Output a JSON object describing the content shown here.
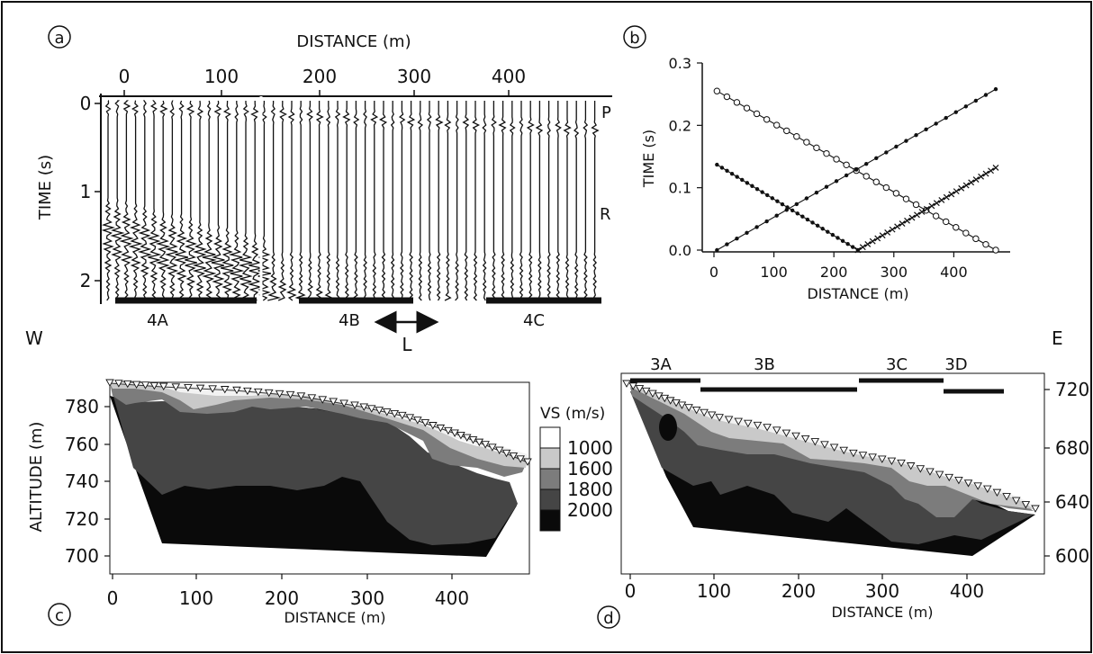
{
  "panels": {
    "a": {
      "letter": "a",
      "xlabel": "DISTANCE (m)",
      "ylabel": "TIME (s)",
      "xticks": [
        "0",
        "100",
        "200",
        "300",
        "400"
      ],
      "yticks": [
        "0",
        "1",
        "2"
      ],
      "phase_p": "P",
      "phase_r": "R",
      "segments": [
        "4A",
        "4B",
        "4C"
      ],
      "arrow_label": "L"
    },
    "b": {
      "letter": "b",
      "xlabel": "DISTANCE (m)",
      "ylabel": "TIME (s)",
      "xticks": [
        "0",
        "100",
        "200",
        "300",
        "400"
      ],
      "yticks": [
        "0.0",
        "0.1",
        "0.2",
        "0.3"
      ]
    },
    "c": {
      "letter": "c",
      "xlabel": "DISTANCE (m)",
      "ylabel": "ALTITUDE (m)",
      "xticks": [
        "0",
        "100",
        "200",
        "300",
        "400"
      ],
      "yticks": [
        "780",
        "760",
        "740",
        "720",
        "700"
      ]
    },
    "d": {
      "letter": "d",
      "xlabel": "DISTANCE (m)",
      "xticks": [
        "0",
        "100",
        "200",
        "300",
        "400"
      ],
      "yticks": [
        "720",
        "680",
        "640",
        "600"
      ],
      "segments": [
        "3A",
        "3B",
        "3C",
        "3D"
      ]
    }
  },
  "direction": {
    "west": "W",
    "east": "E"
  },
  "legend": {
    "title": "VS (m/s)",
    "classes": [
      {
        "label": "1000",
        "color": "#ffffff"
      },
      {
        "label": "1600",
        "color": "#c9c9c9"
      },
      {
        "label": "1800",
        "color": "#7c7c7c"
      },
      {
        "label": "2000",
        "color": "#454545"
      },
      {
        "label": "",
        "color": "#0a0a0a"
      }
    ]
  },
  "chart_data": [
    {
      "type": "line",
      "panel": "b",
      "xlim": [
        -20,
        480
      ],
      "ylim": [
        0,
        0.3
      ],
      "series": [
        {
          "marker": "circle",
          "x": [
            5,
            470
          ],
          "y": [
            0.255,
            0.0
          ]
        },
        {
          "marker": "dot",
          "x": [
            5,
            470
          ],
          "y": [
            0.0,
            0.258
          ]
        },
        {
          "marker": "dot",
          "x": [
            5,
            240
          ],
          "y": [
            0.137,
            0.0
          ]
        },
        {
          "marker": "cross",
          "x": [
            240,
            470
          ],
          "y": [
            0.0,
            0.132
          ]
        }
      ]
    }
  ]
}
